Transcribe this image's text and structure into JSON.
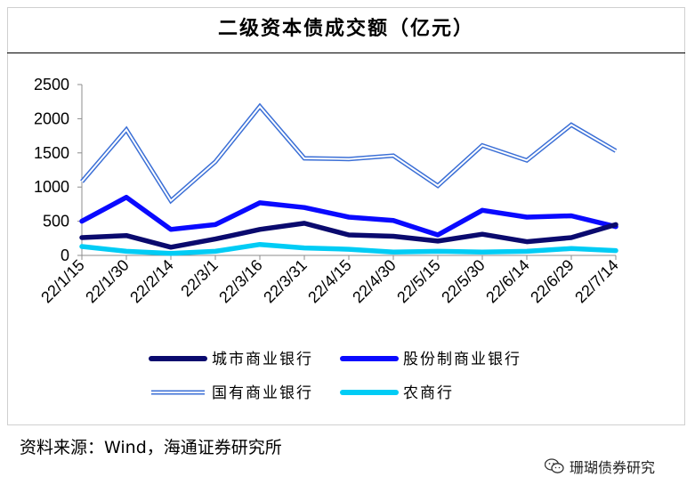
{
  "chart_data": {
    "type": "line",
    "title": "二级资本债成交额（亿元）",
    "xlabel": "",
    "ylabel": "",
    "categories": [
      "22/1/15",
      "22/1/30",
      "22/2/14",
      "22/3/1",
      "22/3/16",
      "22/3/31",
      "22/4/15",
      "22/4/30",
      "22/5/15",
      "22/5/30",
      "22/6/14",
      "22/6/29",
      "22/7/14"
    ],
    "ylim": [
      0,
      2500
    ],
    "yticks": [
      "0",
      "500",
      "1000",
      "1500",
      "2000",
      "2500"
    ],
    "grid": false,
    "legend_position": "bottom",
    "series": [
      {
        "name": "城市商业银行",
        "color": "#0a0a6e",
        "style": "solid",
        "values": [
          260,
          290,
          120,
          240,
          380,
          470,
          300,
          280,
          210,
          310,
          200,
          260,
          450
        ]
      },
      {
        "name": "股份制商业银行",
        "color": "#0a0aff",
        "style": "solid",
        "values": [
          500,
          850,
          380,
          450,
          770,
          700,
          560,
          510,
          300,
          660,
          560,
          580,
          420
        ]
      },
      {
        "name": "国有商业银行",
        "color": "#3b6fd6",
        "style": "double",
        "values": [
          1080,
          1840,
          800,
          1370,
          2180,
          1420,
          1410,
          1460,
          1020,
          1610,
          1390,
          1910,
          1530
        ]
      },
      {
        "name": "农商行",
        "color": "#00ccf5",
        "style": "solid",
        "values": [
          130,
          60,
          30,
          60,
          160,
          110,
          90,
          50,
          60,
          50,
          60,
          100,
          70
        ]
      }
    ]
  },
  "source_text": "资料来源：Wind，海通证券研究所",
  "watermark": {
    "text": "珊瑚债券研究",
    "icon": "wechat-icon"
  }
}
